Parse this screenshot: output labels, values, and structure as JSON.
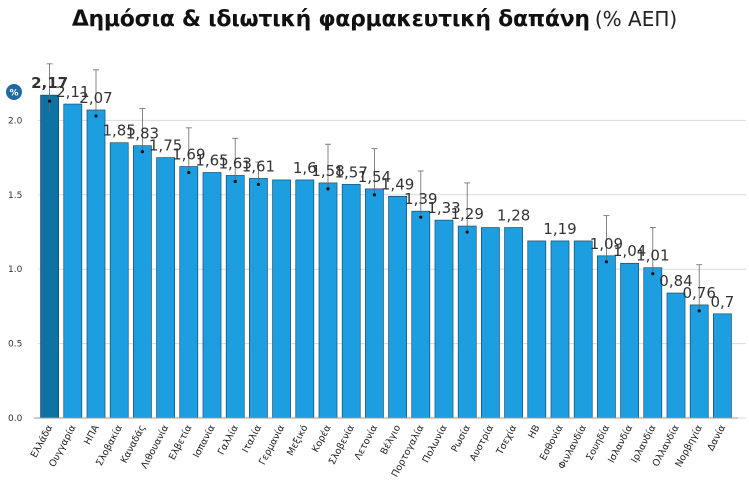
{
  "title": "Δημόσια & ιδιωτική φαρμακευτική δαπάνη",
  "unit_label": "(% ΑΕΠ)",
  "axis_badge": "%",
  "colors": {
    "bar": "#1c9ee0",
    "bar_highlight": "#0e72a4",
    "bar_edge": "#0b3c5a",
    "grid": "#d9d9d9",
    "badge": "#1f6aa5",
    "label": "#333333"
  },
  "chart_data": {
    "type": "bar",
    "ylabel": "%",
    "ylim": [
      0,
      2.5
    ],
    "yticks": [
      "0.0",
      "0.5",
      "1.0",
      "1.5",
      "2.0"
    ],
    "grid": true,
    "categories": [
      "Ελλάδα",
      "Ουγγαρία",
      "ΗΠΑ",
      "Σλοβακία",
      "Καναδάς",
      "Λιθουανία",
      "Ελβετία",
      "Ισπανία",
      "Γαλλία",
      "Ιταλία",
      "Γερμανία",
      "Μεξικό",
      "Κορέα",
      "Σλοβενία",
      "Λετονία",
      "Βέλγιο",
      "Πορτογαλία",
      "Πολωνία",
      "Ρωσία",
      "Αυστρία",
      "Τσεχία",
      "ΗΒ",
      "Εσθονία",
      "Φινλανδία",
      "Σουηδία",
      "Ισλανδία",
      "Ιρλανδία",
      "Ολλανδία",
      "Νορβηγία",
      "Δανία"
    ],
    "values": [
      2.17,
      2.11,
      2.07,
      1.85,
      1.83,
      1.75,
      1.69,
      1.65,
      1.63,
      1.61,
      1.6,
      1.6,
      1.58,
      1.57,
      1.54,
      1.49,
      1.39,
      1.33,
      1.29,
      1.28,
      1.28,
      1.19,
      1.19,
      1.19,
      1.09,
      1.04,
      1.01,
      0.84,
      0.76,
      0.7
    ],
    "data_labels": [
      "2,17",
      "2,11",
      "2,07",
      "1,85",
      "1,83",
      "1,75",
      "1,69",
      "1,65",
      "1,63",
      "1,61",
      "",
      "1,6",
      "1,58",
      "1,57",
      "1,54",
      "1,49",
      "1,39",
      "1,33",
      "1,29",
      "",
      "1,28",
      "",
      "1,19",
      "",
      "1,09",
      "1,04",
      "1,01",
      "0,84",
      "0,76",
      "0,7"
    ],
    "error_bars": [
      {
        "category": "Ελλάδα",
        "low": 2.05,
        "high": 2.38
      },
      {
        "category": "ΗΠΑ",
        "low": 2.05,
        "high": 2.34
      },
      {
        "category": "Καναδάς",
        "low": 1.8,
        "high": 2.08
      },
      {
        "category": "Ελβετία",
        "low": 1.65,
        "high": 1.95
      },
      {
        "category": "Γαλλία",
        "low": 1.6,
        "high": 1.88
      },
      {
        "category": "Ιταλία",
        "low": 1.58,
        "high": 1.72
      },
      {
        "category": "Κορέα",
        "low": 1.55,
        "high": 1.84
      },
      {
        "category": "Λετονία",
        "low": 1.51,
        "high": 1.81
      },
      {
        "category": "Πορτογαλία",
        "low": 1.37,
        "high": 1.66
      },
      {
        "category": "Ρωσία",
        "low": 1.26,
        "high": 1.58
      },
      {
        "category": "Σουηδία",
        "low": 1.06,
        "high": 1.36
      },
      {
        "category": "Ιρλανδία",
        "low": 0.98,
        "high": 1.28
      },
      {
        "category": "Νορβηγία",
        "low": 0.73,
        "high": 1.03
      }
    ],
    "highlight": "Ελλάδα"
  }
}
